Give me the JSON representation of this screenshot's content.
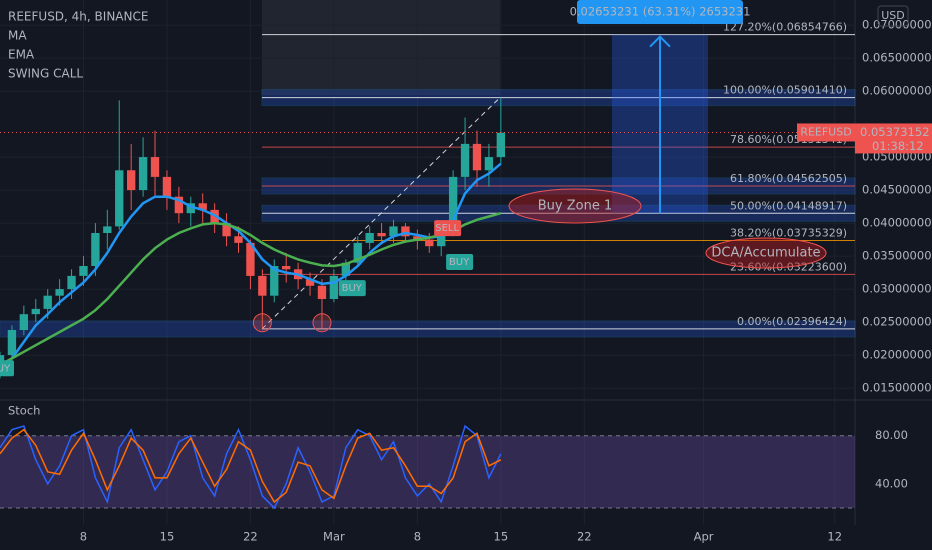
{
  "chart_data": [
    {
      "type": "candlestick",
      "title": "REEFUSD, 4h, BINANCE",
      "signal_indicator": "SWING CALL",
      "currency": "USD",
      "up_color": "#26a69a",
      "down_color": "#ef5350",
      "xlim": [
        0,
        71.7
      ],
      "ylim": [
        0.0135,
        0.0738
      ],
      "xticks": [
        {
          "value": 7,
          "label": "8"
        },
        {
          "value": 14,
          "label": "15"
        },
        {
          "value": 21,
          "label": "22"
        },
        {
          "value": 28,
          "label": "Mar"
        },
        {
          "value": 35,
          "label": "8"
        },
        {
          "value": 42,
          "label": "15"
        },
        {
          "value": 49,
          "label": "22"
        },
        {
          "value": 59,
          "label": "Apr"
        },
        {
          "value": 70,
          "label": "12"
        }
      ],
      "yticks": [
        {
          "value": 0.015,
          "label": "0.01500000"
        },
        {
          "value": 0.02,
          "label": "0.02000000"
        },
        {
          "value": 0.025,
          "label": "0.02500000"
        },
        {
          "value": 0.03,
          "label": "0.03000000"
        },
        {
          "value": 0.035,
          "label": "0.03500000"
        },
        {
          "value": 0.04,
          "label": "0.04000000"
        },
        {
          "value": 0.045,
          "label": "0.04500000"
        },
        {
          "value": 0.05,
          "label": "0.05000000"
        },
        {
          "value": 0.06,
          "label": "0.06000000"
        },
        {
          "value": 0.065,
          "label": "0.06500000"
        },
        {
          "value": 0.07,
          "label": "0.07000000"
        }
      ],
      "x": [
        0,
        1,
        2,
        3,
        4,
        5,
        6,
        7,
        8,
        9,
        10,
        11,
        12,
        13,
        14,
        15,
        16,
        17,
        18,
        19,
        20,
        21,
        22,
        23,
        24,
        25,
        26,
        27,
        28,
        29,
        30,
        31,
        32,
        33,
        34,
        35,
        36,
        37,
        38,
        39,
        40,
        41,
        42
      ],
      "open": [
        0.017,
        0.02,
        0.0238,
        0.0262,
        0.027,
        0.029,
        0.03,
        0.032,
        0.0335,
        0.0385,
        0.0395,
        0.048,
        0.045,
        0.05,
        0.047,
        0.044,
        0.0415,
        0.043,
        0.042,
        0.04,
        0.038,
        0.037,
        0.032,
        0.029,
        0.0335,
        0.033,
        0.0315,
        0.0305,
        0.0285,
        0.032,
        0.034,
        0.037,
        0.0385,
        0.038,
        0.0395,
        0.038,
        0.0375,
        0.0365,
        0.0385,
        0.047,
        0.052,
        0.048,
        0.05
      ],
      "high": [
        0.0205,
        0.0245,
        0.0275,
        0.0285,
        0.03,
        0.0315,
        0.033,
        0.035,
        0.04,
        0.042,
        0.0586,
        0.052,
        0.053,
        0.054,
        0.048,
        0.0455,
        0.044,
        0.0445,
        0.043,
        0.0415,
        0.0395,
        0.0375,
        0.033,
        0.0345,
        0.0355,
        0.034,
        0.0325,
        0.0315,
        0.033,
        0.0345,
        0.038,
        0.0395,
        0.04,
        0.0405,
        0.04,
        0.039,
        0.0385,
        0.039,
        0.048,
        0.056,
        0.054,
        0.052,
        0.059
      ],
      "low": [
        0.0165,
        0.0195,
        0.023,
        0.025,
        0.0255,
        0.0275,
        0.0285,
        0.0305,
        0.032,
        0.036,
        0.039,
        0.042,
        0.044,
        0.044,
        0.042,
        0.04,
        0.0395,
        0.04,
        0.0385,
        0.0365,
        0.0355,
        0.03,
        0.024,
        0.028,
        0.031,
        0.03,
        0.029,
        0.024,
        0.028,
        0.031,
        0.0335,
        0.036,
        0.037,
        0.037,
        0.037,
        0.036,
        0.0355,
        0.035,
        0.038,
        0.045,
        0.0455,
        0.0455,
        0.049
      ],
      "close": [
        0.02,
        0.0238,
        0.0262,
        0.027,
        0.029,
        0.03,
        0.032,
        0.0335,
        0.0385,
        0.0395,
        0.048,
        0.045,
        0.05,
        0.047,
        0.044,
        0.0415,
        0.043,
        0.042,
        0.04,
        0.038,
        0.037,
        0.032,
        0.029,
        0.0335,
        0.033,
        0.0315,
        0.0305,
        0.0285,
        0.032,
        0.034,
        0.037,
        0.0385,
        0.038,
        0.0395,
        0.038,
        0.0375,
        0.0365,
        0.0385,
        0.047,
        0.052,
        0.048,
        0.05,
        0.0537
      ],
      "series": [
        {
          "name": "MA",
          "color": "#2196f3",
          "values": [
            0.0175,
            0.0195,
            0.022,
            0.0245,
            0.0262,
            0.028,
            0.0295,
            0.031,
            0.033,
            0.0355,
            0.0385,
            0.041,
            0.043,
            0.044,
            0.044,
            0.0435,
            0.0425,
            0.042,
            0.0412,
            0.04,
            0.0388,
            0.037,
            0.0345,
            0.033,
            0.0325,
            0.0322,
            0.0315,
            0.0308,
            0.031,
            0.032,
            0.0335,
            0.0355,
            0.037,
            0.038,
            0.0385,
            0.0382,
            0.0378,
            0.038,
            0.0405,
            0.0445,
            0.0465,
            0.0475,
            0.049
          ]
        },
        {
          "name": "EMA",
          "color": "#4caf50",
          "values": [
            0.0185,
            0.0195,
            0.0205,
            0.0215,
            0.0225,
            0.0235,
            0.0245,
            0.0255,
            0.0268,
            0.0285,
            0.0305,
            0.0325,
            0.0345,
            0.0362,
            0.0375,
            0.0385,
            0.0392,
            0.0398,
            0.04,
            0.0398,
            0.0392,
            0.0382,
            0.037,
            0.036,
            0.0352,
            0.0345,
            0.034,
            0.0336,
            0.0335,
            0.0338,
            0.0345,
            0.0352,
            0.036,
            0.0367,
            0.0372,
            0.0375,
            0.0378,
            0.0382,
            0.0388,
            0.0398,
            0.0405,
            0.041,
            0.0415
          ]
        }
      ],
      "fib_levels": [
        {
          "label": "127.20%(0.06854766)",
          "value": 0.06854766,
          "color": "#ffffff"
        },
        {
          "label": "100.00%(0.05901410)",
          "value": 0.0590141,
          "color": "#ffffff"
        },
        {
          "label": "78.60%(0.05151341)",
          "value": 0.05151341,
          "color": "#ef5350"
        },
        {
          "label": "61.80%(0.04562505)",
          "value": 0.04562505,
          "color": "#ef5350"
        },
        {
          "label": "50.00%(0.04148917)",
          "value": 0.04148917,
          "color": "#ffffff"
        },
        {
          "label": "38.20%(0.03735329)",
          "value": 0.03735329,
          "color": "#ff9800"
        },
        {
          "label": "23.60%(0.03223600)",
          "value": 0.032236,
          "color": "#ef5350"
        },
        {
          "label": "0.00%(0.02396424)",
          "value": 0.02396424,
          "color": "#ffffff"
        }
      ],
      "signals": [
        {
          "label": "BUY",
          "x": 0,
          "value": 0.018,
          "color": "#26a69a"
        },
        {
          "label": "BUY",
          "x": 29.5,
          "value": 0.03015,
          "color": "#26a69a"
        },
        {
          "label": "SELL",
          "x": 37.5,
          "value": 0.03924,
          "color": "#ef5350"
        },
        {
          "label": "BUY",
          "x": 38.5,
          "value": 0.0341,
          "color": "#26a69a"
        }
      ],
      "annotations": {
        "measure": "0.02653231 (63.31%) 2653231",
        "buy_zone": "Buy Zone 1",
        "dca": "DCA/Accumulate"
      },
      "last_price": {
        "symbol": "REEFUSD",
        "value": 0.05373152,
        "label": "0.05373152",
        "countdown": "01:38:12"
      }
    },
    {
      "type": "line",
      "title": "Stoch",
      "ylim": [
        10,
        108
      ],
      "band": [
        20,
        80
      ],
      "yticks": [
        {
          "value": 40,
          "label": "40.00"
        },
        {
          "value": 80,
          "label": "80.00"
        }
      ],
      "x": [
        0,
        1,
        2,
        3,
        4,
        5,
        6,
        7,
        8,
        9,
        10,
        11,
        12,
        13,
        14,
        15,
        16,
        17,
        18,
        19,
        20,
        21,
        22,
        23,
        24,
        25,
        26,
        27,
        28,
        29,
        30,
        31,
        32,
        33,
        34,
        35,
        36,
        37,
        38,
        39,
        40,
        41,
        42
      ],
      "series": [
        {
          "name": "%K",
          "color": "#2962ff",
          "values": [
            70,
            85,
            88,
            60,
            40,
            55,
            80,
            85,
            45,
            25,
            70,
            85,
            60,
            35,
            50,
            75,
            80,
            45,
            30,
            65,
            85,
            60,
            30,
            20,
            40,
            70,
            50,
            25,
            30,
            70,
            85,
            80,
            60,
            75,
            45,
            30,
            40,
            25,
            55,
            88,
            80,
            45,
            65
          ]
        },
        {
          "name": "%D",
          "color": "#ff6d00",
          "values": [
            65,
            78,
            85,
            72,
            50,
            48,
            68,
            82,
            60,
            35,
            55,
            78,
            68,
            45,
            45,
            65,
            78,
            58,
            38,
            52,
            75,
            68,
            42,
            25,
            33,
            58,
            55,
            35,
            28,
            55,
            78,
            82,
            68,
            70,
            55,
            38,
            38,
            32,
            45,
            75,
            82,
            55,
            60
          ]
        }
      ]
    }
  ]
}
